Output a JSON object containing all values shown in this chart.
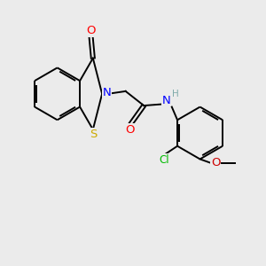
{
  "bg_color": "#ebebeb",
  "bond_color": "#000000",
  "atom_colors": {
    "O": "#ff0000",
    "N": "#0000ff",
    "S": "#ccaa00",
    "Cl": "#00bb00",
    "O_methoxy": "#cc0000",
    "H": "#7faaaa",
    "C": "#000000"
  },
  "lw": 1.4,
  "font_size": 8.5
}
